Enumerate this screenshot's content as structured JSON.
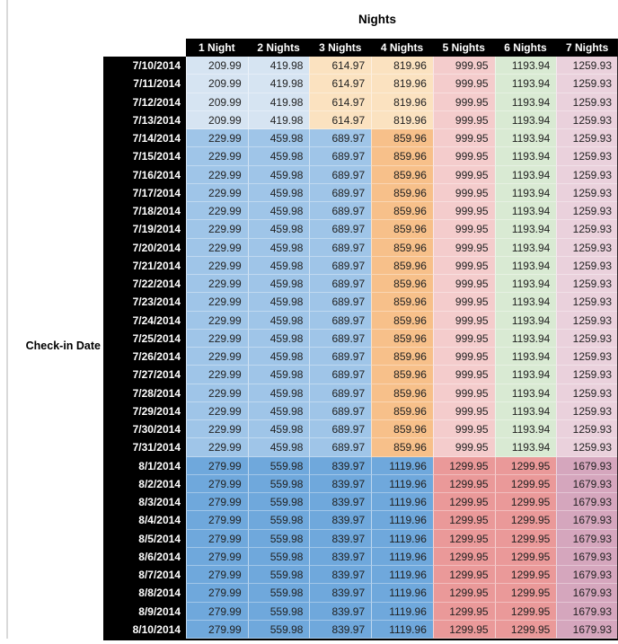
{
  "title": "Nights",
  "row_axis_label": "Check-in Date",
  "colors": {
    "header_bg": "#000000",
    "header_text": "#ffffff",
    "date_col_bg": "#000000",
    "date_text": "#ffffff",
    "cell_text": "#1f1f1f",
    "left_rule": "#d9d9d9"
  },
  "table": {
    "column_headers": [
      "1 Night",
      "2 Nights",
      "3 Nights",
      "4 Nights",
      "5 Nights",
      "6 Nights",
      "7 Nights"
    ],
    "zone_colors": {
      "early": [
        "#d6e4f2",
        "#d6e4f2",
        "#fbe2c0",
        "#fbe2c0",
        "#f4cccc",
        "#d9ead3",
        "#ead1dc"
      ],
      "mid": [
        "#9fc5e8",
        "#9fc5e8",
        "#9fc5e8",
        "#f7c08a",
        "#f4cccc",
        "#d9ead3",
        "#ead1dc"
      ],
      "late": [
        "#6fa8dc",
        "#6fa8dc",
        "#6fa8dc",
        "#6fa8dc",
        "#ea9999",
        "#ea9999",
        "#d5a6bd"
      ]
    },
    "rows": [
      {
        "date": "7/10/2014",
        "zone": "early",
        "values": [
          "209.99",
          "419.98",
          "614.97",
          "819.96",
          "999.95",
          "1193.94",
          "1259.93"
        ]
      },
      {
        "date": "7/11/2014",
        "zone": "early",
        "values": [
          "209.99",
          "419.98",
          "614.97",
          "819.96",
          "999.95",
          "1193.94",
          "1259.93"
        ]
      },
      {
        "date": "7/12/2014",
        "zone": "early",
        "values": [
          "209.99",
          "419.98",
          "614.97",
          "819.96",
          "999.95",
          "1193.94",
          "1259.93"
        ]
      },
      {
        "date": "7/13/2014",
        "zone": "early",
        "values": [
          "209.99",
          "419.98",
          "614.97",
          "819.96",
          "999.95",
          "1193.94",
          "1259.93"
        ]
      },
      {
        "date": "7/14/2014",
        "zone": "mid",
        "values": [
          "229.99",
          "459.98",
          "689.97",
          "859.96",
          "999.95",
          "1193.94",
          "1259.93"
        ]
      },
      {
        "date": "7/15/2014",
        "zone": "mid",
        "values": [
          "229.99",
          "459.98",
          "689.97",
          "859.96",
          "999.95",
          "1193.94",
          "1259.93"
        ]
      },
      {
        "date": "7/16/2014",
        "zone": "mid",
        "values": [
          "229.99",
          "459.98",
          "689.97",
          "859.96",
          "999.95",
          "1193.94",
          "1259.93"
        ]
      },
      {
        "date": "7/17/2014",
        "zone": "mid",
        "values": [
          "229.99",
          "459.98",
          "689.97",
          "859.96",
          "999.95",
          "1193.94",
          "1259.93"
        ]
      },
      {
        "date": "7/18/2014",
        "zone": "mid",
        "values": [
          "229.99",
          "459.98",
          "689.97",
          "859.96",
          "999.95",
          "1193.94",
          "1259.93"
        ]
      },
      {
        "date": "7/19/2014",
        "zone": "mid",
        "values": [
          "229.99",
          "459.98",
          "689.97",
          "859.96",
          "999.95",
          "1193.94",
          "1259.93"
        ]
      },
      {
        "date": "7/20/2014",
        "zone": "mid",
        "values": [
          "229.99",
          "459.98",
          "689.97",
          "859.96",
          "999.95",
          "1193.94",
          "1259.93"
        ]
      },
      {
        "date": "7/21/2014",
        "zone": "mid",
        "values": [
          "229.99",
          "459.98",
          "689.97",
          "859.96",
          "999.95",
          "1193.94",
          "1259.93"
        ]
      },
      {
        "date": "7/22/2014",
        "zone": "mid",
        "values": [
          "229.99",
          "459.98",
          "689.97",
          "859.96",
          "999.95",
          "1193.94",
          "1259.93"
        ]
      },
      {
        "date": "7/23/2014",
        "zone": "mid",
        "values": [
          "229.99",
          "459.98",
          "689.97",
          "859.96",
          "999.95",
          "1193.94",
          "1259.93"
        ]
      },
      {
        "date": "7/24/2014",
        "zone": "mid",
        "values": [
          "229.99",
          "459.98",
          "689.97",
          "859.96",
          "999.95",
          "1193.94",
          "1259.93"
        ]
      },
      {
        "date": "7/25/2014",
        "zone": "mid",
        "values": [
          "229.99",
          "459.98",
          "689.97",
          "859.96",
          "999.95",
          "1193.94",
          "1259.93"
        ]
      },
      {
        "date": "7/26/2014",
        "zone": "mid",
        "values": [
          "229.99",
          "459.98",
          "689.97",
          "859.96",
          "999.95",
          "1193.94",
          "1259.93"
        ]
      },
      {
        "date": "7/27/2014",
        "zone": "mid",
        "values": [
          "229.99",
          "459.98",
          "689.97",
          "859.96",
          "999.95",
          "1193.94",
          "1259.93"
        ]
      },
      {
        "date": "7/28/2014",
        "zone": "mid",
        "values": [
          "229.99",
          "459.98",
          "689.97",
          "859.96",
          "999.95",
          "1193.94",
          "1259.93"
        ]
      },
      {
        "date": "7/29/2014",
        "zone": "mid",
        "values": [
          "229.99",
          "459.98",
          "689.97",
          "859.96",
          "999.95",
          "1193.94",
          "1259.93"
        ]
      },
      {
        "date": "7/30/2014",
        "zone": "mid",
        "values": [
          "229.99",
          "459.98",
          "689.97",
          "859.96",
          "999.95",
          "1193.94",
          "1259.93"
        ]
      },
      {
        "date": "7/31/2014",
        "zone": "mid",
        "values": [
          "229.99",
          "459.98",
          "689.97",
          "859.96",
          "999.95",
          "1193.94",
          "1259.93"
        ]
      },
      {
        "date": "8/1/2014",
        "zone": "late",
        "values": [
          "279.99",
          "559.98",
          "839.97",
          "1119.96",
          "1299.95",
          "1299.95",
          "1679.93"
        ]
      },
      {
        "date": "8/2/2014",
        "zone": "late",
        "values": [
          "279.99",
          "559.98",
          "839.97",
          "1119.96",
          "1299.95",
          "1299.95",
          "1679.93"
        ]
      },
      {
        "date": "8/3/2014",
        "zone": "late",
        "values": [
          "279.99",
          "559.98",
          "839.97",
          "1119.96",
          "1299.95",
          "1299.95",
          "1679.93"
        ]
      },
      {
        "date": "8/4/2014",
        "zone": "late",
        "values": [
          "279.99",
          "559.98",
          "839.97",
          "1119.96",
          "1299.95",
          "1299.95",
          "1679.93"
        ]
      },
      {
        "date": "8/5/2014",
        "zone": "late",
        "values": [
          "279.99",
          "559.98",
          "839.97",
          "1119.96",
          "1299.95",
          "1299.95",
          "1679.93"
        ]
      },
      {
        "date": "8/6/2014",
        "zone": "late",
        "values": [
          "279.99",
          "559.98",
          "839.97",
          "1119.96",
          "1299.95",
          "1299.95",
          "1679.93"
        ]
      },
      {
        "date": "8/7/2014",
        "zone": "late",
        "values": [
          "279.99",
          "559.98",
          "839.97",
          "1119.96",
          "1299.95",
          "1299.95",
          "1679.93"
        ]
      },
      {
        "date": "8/8/2014",
        "zone": "late",
        "values": [
          "279.99",
          "559.98",
          "839.97",
          "1119.96",
          "1299.95",
          "1299.95",
          "1679.93"
        ]
      },
      {
        "date": "8/9/2014",
        "zone": "late",
        "values": [
          "279.99",
          "559.98",
          "839.97",
          "1119.96",
          "1299.95",
          "1299.95",
          "1679.93"
        ]
      },
      {
        "date": "8/10/2014",
        "zone": "late",
        "values": [
          "279.99",
          "559.98",
          "839.97",
          "1119.96",
          "1299.95",
          "1299.95",
          "1679.93"
        ]
      }
    ]
  }
}
